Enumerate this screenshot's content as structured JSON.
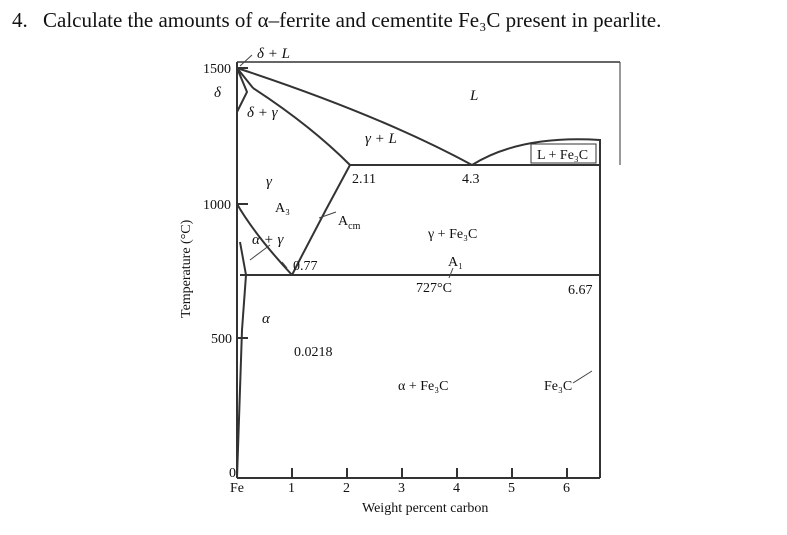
{
  "question": {
    "number": "4.",
    "text": "Calculate the amounts of α–ferrite and cementite Fe₃C present in pearlite."
  },
  "axes": {
    "y_label": "Temperature (°C)",
    "x_label": "Weight percent carbon",
    "y_ticks": [
      "0",
      "500",
      "1000",
      "1500"
    ],
    "x_ticks": [
      "Fe",
      "1",
      "2",
      "3",
      "4",
      "5",
      "6"
    ]
  },
  "phases": {
    "delta_L": "δ + L",
    "delta": "δ",
    "delta_gamma": "δ + γ",
    "L": "L",
    "gamma_L": "γ + L",
    "L_Fe3C": "L + Fe₃C",
    "gamma": "γ",
    "alpha_gamma": "α + γ",
    "gamma_Fe3C": "γ + Fe₃C",
    "alpha": "α",
    "alpha_Fe3C": "α + Fe₃C",
    "Fe3C": "Fe₃C"
  },
  "annotations": {
    "c_211": "2.11",
    "c_43": "4.3",
    "a3": "A₃",
    "acm": "A",
    "acm_sub": "cm",
    "c_077": "0.77",
    "a1": "A₁",
    "temp_727": "727°C",
    "c_667": "6.67",
    "c_00218": "0.0218"
  }
}
